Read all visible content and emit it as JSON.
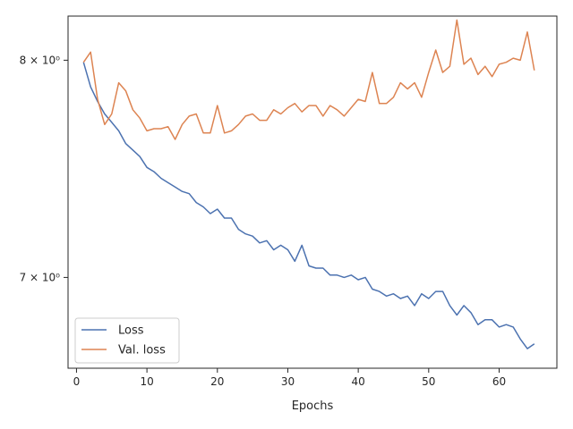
{
  "chart_data": {
    "type": "line",
    "title": "",
    "xlabel": "Epochs",
    "ylabel": "",
    "yscale": "log",
    "grid": false,
    "legend_position": "lower-left",
    "xlim": [
      -1.2,
      68.2
    ],
    "ylim": [
      6.62,
      8.22
    ],
    "x_ticks": [
      0,
      10,
      20,
      30,
      40,
      50,
      60
    ],
    "y_ticks": [
      {
        "value": 7,
        "label": "7 × 10⁰"
      },
      {
        "value": 8,
        "label": "8 × 10⁰"
      }
    ],
    "x": [
      1,
      2,
      3,
      4,
      5,
      6,
      7,
      8,
      9,
      10,
      11,
      12,
      13,
      14,
      15,
      16,
      17,
      18,
      19,
      20,
      21,
      22,
      23,
      24,
      25,
      26,
      27,
      28,
      29,
      30,
      31,
      32,
      33,
      34,
      35,
      36,
      37,
      38,
      39,
      40,
      41,
      42,
      43,
      44,
      45,
      46,
      47,
      48,
      49,
      50,
      51,
      52,
      53,
      54,
      55,
      56,
      57,
      58,
      59,
      60,
      61,
      62,
      63,
      64,
      65
    ],
    "series": [
      {
        "name": "Loss",
        "color": "#4c72b0",
        "values": [
          7.99,
          7.87,
          7.8,
          7.74,
          7.7,
          7.66,
          7.6,
          7.57,
          7.54,
          7.49,
          7.47,
          7.44,
          7.42,
          7.4,
          7.38,
          7.37,
          7.33,
          7.31,
          7.28,
          7.3,
          7.26,
          7.26,
          7.21,
          7.19,
          7.18,
          7.15,
          7.16,
          7.12,
          7.14,
          7.12,
          7.07,
          7.14,
          7.05,
          7.04,
          7.04,
          7.01,
          7.01,
          7.0,
          7.01,
          6.99,
          7.0,
          6.95,
          6.94,
          6.92,
          6.93,
          6.91,
          6.92,
          6.88,
          6.93,
          6.91,
          6.94,
          6.94,
          6.88,
          6.84,
          6.88,
          6.85,
          6.8,
          6.82,
          6.82,
          6.79,
          6.8,
          6.79,
          6.74,
          6.7,
          6.72
        ]
      },
      {
        "name": "Val. loss",
        "color": "#dd8452",
        "values": [
          7.99,
          8.04,
          7.81,
          7.69,
          7.74,
          7.89,
          7.85,
          7.76,
          7.72,
          7.66,
          7.67,
          7.67,
          7.68,
          7.62,
          7.69,
          7.73,
          7.74,
          7.65,
          7.65,
          7.78,
          7.65,
          7.66,
          7.69,
          7.73,
          7.74,
          7.71,
          7.71,
          7.76,
          7.74,
          7.77,
          7.79,
          7.75,
          7.78,
          7.78,
          7.73,
          7.78,
          7.76,
          7.73,
          7.77,
          7.81,
          7.8,
          7.94,
          7.79,
          7.79,
          7.82,
          7.89,
          7.86,
          7.89,
          7.82,
          7.94,
          8.05,
          7.94,
          7.97,
          8.2,
          7.98,
          8.01,
          7.93,
          7.97,
          7.92,
          7.98,
          7.99,
          8.01,
          8.0,
          8.14,
          7.95
        ]
      }
    ]
  }
}
